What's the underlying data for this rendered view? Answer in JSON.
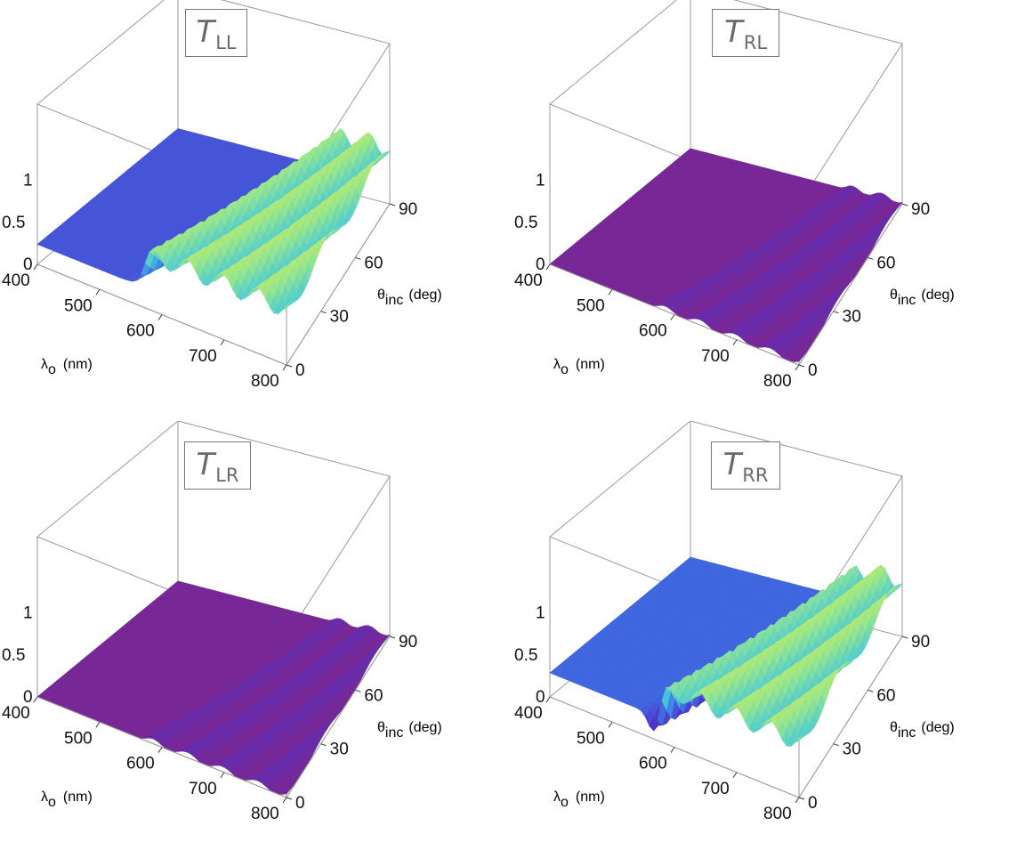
{
  "chart_data": [
    {
      "type": "surface3d",
      "title_main": "T",
      "title_sub": "LL",
      "xlabel_symbol": "λ",
      "xlabel_sub": "o",
      "xlabel_unit": "(nm)",
      "ylabel_symbol": "θ",
      "ylabel_sub": "inc",
      "ylabel_unit": "(deg)",
      "x_ticks": [
        "400",
        "500",
        "600",
        "700",
        "800"
      ],
      "y_ticks": [
        "0",
        "30",
        "60",
        "90"
      ],
      "z_ticks": [
        "0",
        "0.5",
        "1"
      ],
      "xlim": [
        400,
        800
      ],
      "ylim": [
        0,
        90
      ],
      "zlim": [
        0,
        1
      ],
      "band_edge_nm": [
        570,
        690
      ],
      "level_below_edge": 0.25,
      "level_above_edge": 0.7,
      "notch_depth": 0
    },
    {
      "type": "surface3d",
      "title_main": "T",
      "title_sub": "RL",
      "xlabel_symbol": "λ",
      "xlabel_sub": "o",
      "xlabel_unit": "(nm)",
      "ylabel_symbol": "θ",
      "ylabel_sub": "inc",
      "ylabel_unit": "(deg)",
      "x_ticks": [
        "400",
        "500",
        "600",
        "700",
        "800"
      ],
      "y_ticks": [
        "0",
        "30",
        "60",
        "90"
      ],
      "z_ticks": [
        "0",
        "0.5",
        "1"
      ],
      "xlim": [
        400,
        800
      ],
      "ylim": [
        0,
        90
      ],
      "zlim": [
        0,
        1
      ],
      "band_edge_nm": [
        570,
        690
      ],
      "level_below_edge": 0.0,
      "level_above_edge": 0.03,
      "notch_depth": 0
    },
    {
      "type": "surface3d",
      "title_main": "T",
      "title_sub": "LR",
      "xlabel_symbol": "λ",
      "xlabel_sub": "o",
      "xlabel_unit": "(nm)",
      "ylabel_symbol": "θ",
      "ylabel_sub": "inc",
      "ylabel_unit": "(deg)",
      "x_ticks": [
        "400",
        "500",
        "600",
        "700",
        "800"
      ],
      "y_ticks": [
        "0",
        "30",
        "60",
        "90"
      ],
      "z_ticks": [
        "0",
        "0.5",
        "1"
      ],
      "xlim": [
        400,
        800
      ],
      "ylim": [
        0,
        90
      ],
      "zlim": [
        0,
        1
      ],
      "band_edge_nm": [
        570,
        690
      ],
      "level_below_edge": 0.0,
      "level_above_edge": 0.03,
      "notch_depth": 0
    },
    {
      "type": "surface3d",
      "title_main": "T",
      "title_sub": "RR",
      "xlabel_symbol": "λ",
      "xlabel_sub": "o",
      "xlabel_unit": "(nm)",
      "ylabel_symbol": "θ",
      "ylabel_sub": "inc",
      "ylabel_unit": "(deg)",
      "x_ticks": [
        "400",
        "500",
        "600",
        "700",
        "800"
      ],
      "y_ticks": [
        "0",
        "30",
        "60",
        "90"
      ],
      "z_ticks": [
        "0",
        "0.5",
        "1"
      ],
      "xlim": [
        400,
        800
      ],
      "ylim": [
        0,
        90
      ],
      "zlim": [
        0,
        1
      ],
      "band_edge_nm": [
        570,
        690
      ],
      "level_below_edge": 0.3,
      "level_above_edge": 0.7,
      "notch_depth": 0.35
    }
  ]
}
